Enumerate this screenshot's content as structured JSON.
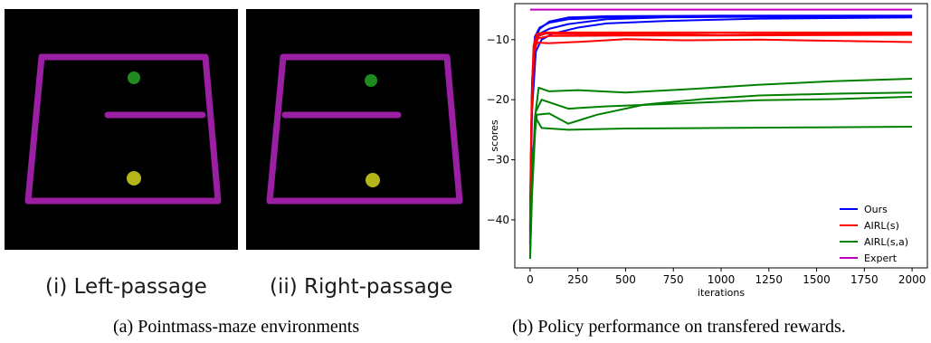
{
  "panel_a": {
    "environments": [
      {
        "label": "(i) Left-passage"
      },
      {
        "label": "(ii) Right-passage"
      }
    ],
    "caption": "(a) Pointmass-maze environments",
    "colors": {
      "wall": "#9b1fa3",
      "goal": "#1f8a1f",
      "agent": "#b5b51a",
      "background": "#000000"
    }
  },
  "panel_b": {
    "caption": "(b) Policy performance on transfered rewards."
  },
  "chart_data": {
    "type": "line",
    "title": "",
    "xlabel": "iterations",
    "ylabel": "scores",
    "xlim": [
      -80,
      2080
    ],
    "ylim": [
      -48,
      -4
    ],
    "xticks": [
      0,
      250,
      500,
      750,
      1000,
      1250,
      1500,
      1750,
      2000
    ],
    "yticks": [
      -10,
      -20,
      -30,
      -40
    ],
    "grid": false,
    "legend_position": "bottom-right",
    "legend": [
      {
        "label": "Ours",
        "color": "#0000ff"
      },
      {
        "label": "AIRL(s)",
        "color": "#ff0000"
      },
      {
        "label": "AIRL(s,a)",
        "color": "#008000"
      },
      {
        "label": "Expert",
        "color": "#bf00bf"
      }
    ],
    "series": [
      {
        "group": "Ours",
        "color": "#0000ff",
        "points": [
          [
            0,
            -44
          ],
          [
            10,
            -20
          ],
          [
            25,
            -11
          ],
          [
            50,
            -9
          ],
          [
            100,
            -8.2
          ],
          [
            200,
            -7.4
          ],
          [
            400,
            -6.6
          ],
          [
            700,
            -6.3
          ],
          [
            1000,
            -6.2
          ],
          [
            2000,
            -6.1
          ]
        ]
      },
      {
        "group": "Ours",
        "color": "#0000ff",
        "points": [
          [
            0,
            -42
          ],
          [
            10,
            -18
          ],
          [
            25,
            -10
          ],
          [
            50,
            -8.2
          ],
          [
            100,
            -7
          ],
          [
            200,
            -6.3
          ],
          [
            400,
            -6.1
          ],
          [
            1000,
            -6
          ],
          [
            2000,
            -6
          ]
        ]
      },
      {
        "group": "Ours",
        "color": "#0000ff",
        "points": [
          [
            0,
            -43
          ],
          [
            10,
            -22
          ],
          [
            30,
            -12
          ],
          [
            60,
            -10
          ],
          [
            120,
            -9
          ],
          [
            250,
            -8
          ],
          [
            400,
            -7.3
          ],
          [
            700,
            -6.9
          ],
          [
            1200,
            -6.5
          ],
          [
            2000,
            -6.3
          ]
        ]
      },
      {
        "group": "Ours",
        "color": "#0000ff",
        "points": [
          [
            0,
            -41
          ],
          [
            10,
            -17
          ],
          [
            25,
            -9.5
          ],
          [
            50,
            -8
          ],
          [
            100,
            -7.2
          ],
          [
            200,
            -6.6
          ],
          [
            400,
            -6.3
          ],
          [
            1000,
            -6.2
          ],
          [
            2000,
            -6.2
          ]
        ]
      },
      {
        "group": "AIRL(s)",
        "color": "#ff0000",
        "points": [
          [
            0,
            -40
          ],
          [
            8,
            -22
          ],
          [
            18,
            -12
          ],
          [
            35,
            -9.5
          ],
          [
            80,
            -9
          ],
          [
            300,
            -9.1
          ],
          [
            600,
            -9.0
          ],
          [
            1000,
            -9.2
          ],
          [
            1500,
            -9.0
          ],
          [
            2000,
            -9.1
          ]
        ]
      },
      {
        "group": "AIRL(s)",
        "color": "#ff0000",
        "points": [
          [
            0,
            -38
          ],
          [
            8,
            -20
          ],
          [
            18,
            -11
          ],
          [
            35,
            -9
          ],
          [
            80,
            -8.8
          ],
          [
            400,
            -8.8
          ],
          [
            1000,
            -8.8
          ],
          [
            2000,
            -8.8
          ]
        ]
      },
      {
        "group": "AIRL(s)",
        "color": "#ff0000",
        "points": [
          [
            0,
            -39
          ],
          [
            8,
            -21
          ],
          [
            20,
            -11.5
          ],
          [
            40,
            -10.5
          ],
          [
            100,
            -10.6
          ],
          [
            300,
            -10.3
          ],
          [
            500,
            -9.9
          ],
          [
            800,
            -10.1
          ],
          [
            1200,
            -10.0
          ],
          [
            1600,
            -10.2
          ],
          [
            2000,
            -10.4
          ]
        ]
      },
      {
        "group": "AIRL(s)",
        "color": "#ff0000",
        "points": [
          [
            0,
            -41
          ],
          [
            8,
            -23
          ],
          [
            20,
            -12.5
          ],
          [
            40,
            -9.8
          ],
          [
            100,
            -9.4
          ],
          [
            500,
            -9.3
          ],
          [
            1000,
            -9.3
          ],
          [
            2000,
            -9.2
          ]
        ]
      },
      {
        "group": "AIRL(s,a)",
        "color": "#008000",
        "points": [
          [
            0,
            -46
          ],
          [
            10,
            -35
          ],
          [
            25,
            -23
          ],
          [
            45,
            -18
          ],
          [
            100,
            -18.6
          ],
          [
            250,
            -18.4
          ],
          [
            500,
            -18.8
          ],
          [
            800,
            -18.3
          ],
          [
            1200,
            -17.5
          ],
          [
            1600,
            -16.9
          ],
          [
            2000,
            -16.5
          ]
        ]
      },
      {
        "group": "AIRL(s,a)",
        "color": "#008000",
        "points": [
          [
            0,
            -45
          ],
          [
            10,
            -33
          ],
          [
            30,
            -22
          ],
          [
            60,
            -20
          ],
          [
            200,
            -21.5
          ],
          [
            400,
            -21.1
          ],
          [
            800,
            -20.6
          ],
          [
            1200,
            -20.1
          ],
          [
            1600,
            -19.9
          ],
          [
            2000,
            -19.5
          ]
        ]
      },
      {
        "group": "AIRL(s,a)",
        "color": "#008000",
        "points": [
          [
            0,
            -46.5
          ],
          [
            10,
            -36
          ],
          [
            30,
            -23
          ],
          [
            60,
            -24.7
          ],
          [
            200,
            -25
          ],
          [
            500,
            -24.8
          ],
          [
            1000,
            -24.7
          ],
          [
            1500,
            -24.6
          ],
          [
            2000,
            -24.5
          ]
        ]
      },
      {
        "group": "AIRL(s,a)",
        "color": "#008000",
        "points": [
          [
            0,
            -44
          ],
          [
            12,
            -30
          ],
          [
            35,
            -22.5
          ],
          [
            100,
            -22.3
          ],
          [
            200,
            -24
          ],
          [
            350,
            -22.5
          ],
          [
            600,
            -20.8
          ],
          [
            900,
            -19.9
          ],
          [
            1200,
            -19.3
          ],
          [
            1600,
            -19.0
          ],
          [
            2000,
            -18.8
          ]
        ]
      },
      {
        "group": "Expert",
        "color": "#bf00bf",
        "points": [
          [
            0,
            -5
          ],
          [
            2000,
            -5
          ]
        ]
      }
    ]
  }
}
